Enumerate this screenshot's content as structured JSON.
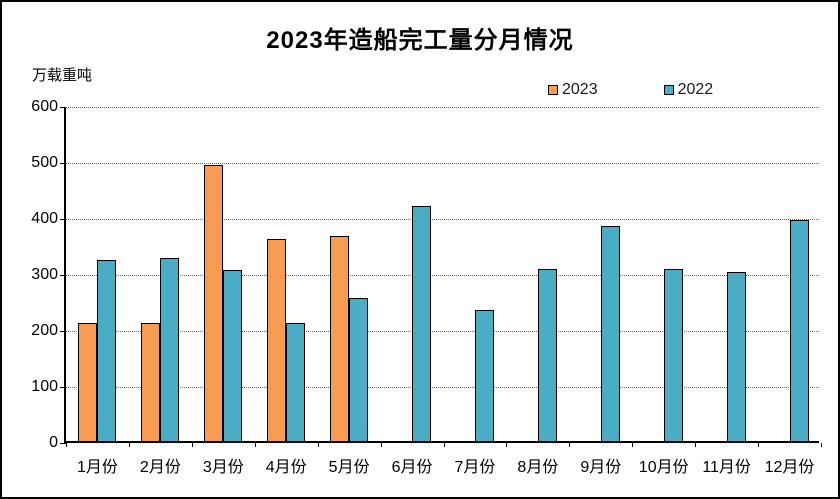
{
  "chart_data": {
    "type": "bar",
    "title": "2023年造船完工量分月情况",
    "unit_label": "万载重吨",
    "categories": [
      "1月份",
      "2月份",
      "3月份",
      "4月份",
      "5月份",
      "6月份",
      "7月份",
      "8月份",
      "9月份",
      "10月份",
      "11月份",
      "12月份"
    ],
    "series": [
      {
        "name": "2023",
        "color": "#F79C50",
        "values": [
          210,
          210,
          492,
          361,
          366,
          null,
          null,
          null,
          null,
          null,
          null,
          null
        ]
      },
      {
        "name": "2022",
        "color": "#4BACC6",
        "values": [
          324,
          327,
          306,
          211,
          255,
          420,
          234,
          308,
          384,
          307,
          302,
          394
        ]
      }
    ],
    "ylim": [
      0,
      600
    ],
    "yticks": [
      0,
      100,
      200,
      300,
      400,
      500,
      600
    ],
    "grid": "horizontal dotted",
    "legend_position": "top-right",
    "bar_border_color": "#000000",
    "axis_color": "#000000",
    "background_color": "#ffffff"
  }
}
